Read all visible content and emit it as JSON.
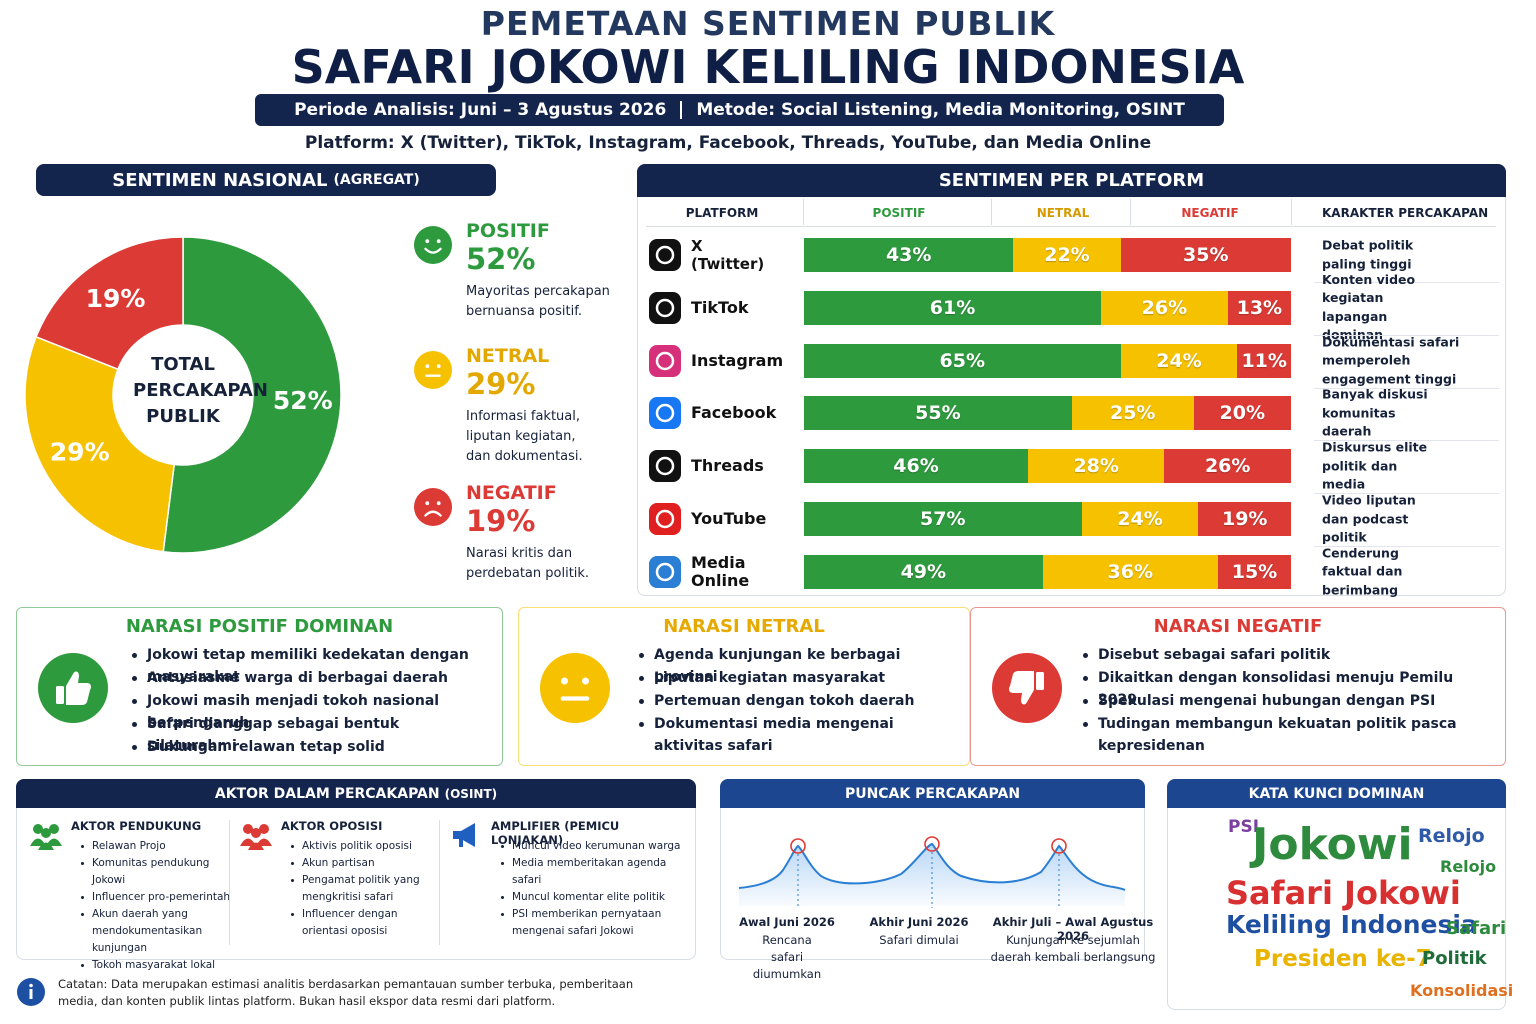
{
  "header": {
    "title_top": "PEMETAAN SENTIMEN PUBLIK",
    "title_main": "SAFARI JOKOWI KELILING INDONESIA",
    "period": "Periode Analisis: Juni – 3 Agustus 2026",
    "method": "Metode: Social Listening, Media Monitoring, OSINT",
    "platforms": "Platform: X (Twitter), TikTok, Instagram, Facebook, Threads, YouTube, dan Media Online"
  },
  "chart_data": [
    {
      "type": "pie",
      "title": "SENTIMEN NASIONAL",
      "title_suffix": "(AGREGAT)",
      "center_label": "TOTAL PERCAKAPAN PUBLIK",
      "categories": [
        "POSITIF",
        "NETRAL",
        "NEGATIF"
      ],
      "values": [
        52,
        29,
        19
      ],
      "value_labels": [
        "52%",
        "29%",
        "19%"
      ],
      "colors": [
        "#2e9a3e",
        "#f6c200",
        "#dc3a35"
      ],
      "descriptions": [
        "Mayoritas percakapan bernuansa positif.",
        "Informasi faktual, liputan kegiatan, dan dokumentasi.",
        "Narasi kritis dan perdebatan politik."
      ]
    },
    {
      "type": "bar",
      "orientation": "horizontal",
      "stacked": true,
      "title": "SENTIMEN PER PLATFORM",
      "platform_header": "PLATFORM",
      "notes_header": "KARAKTER PERCAKAPAN",
      "categories": [
        "X (Twitter)",
        "TikTok",
        "Instagram",
        "Facebook",
        "Threads",
        "YouTube",
        "Media Online"
      ],
      "xlim": [
        0,
        100
      ],
      "series": [
        {
          "name": "POSITIF",
          "color": "#2e9a3e",
          "values": [
            43,
            61,
            65,
            55,
            46,
            57,
            49
          ],
          "value_labels": [
            "43%",
            "61%",
            "65%",
            "55%",
            "46%",
            "57%",
            "49%"
          ]
        },
        {
          "name": "NETRAL",
          "color": "#f6c200",
          "values": [
            22,
            26,
            24,
            25,
            28,
            24,
            36
          ],
          "value_labels": [
            "22%",
            "26%",
            "24%",
            "25%",
            "28%",
            "24%",
            "36%"
          ]
        },
        {
          "name": "NEGATIF",
          "color": "#dc3a35",
          "values": [
            35,
            13,
            11,
            20,
            26,
            19,
            15
          ],
          "value_labels": [
            "35%",
            "13%",
            "11%",
            "20%",
            "26%",
            "19%",
            "15%"
          ]
        }
      ],
      "notes": [
        "Debat politik paling tinggi",
        "Konten video kegiatan lapangan dominan",
        "Dokumentasi safari memperoleh engagement tinggi",
        "Banyak diskusi komunitas daerah",
        "Diskursus elite politik dan media",
        "Video liputan dan podcast politik",
        "Cenderung faktual dan berimbang"
      ]
    }
  ],
  "narratives": [
    {
      "title": "NARASI POSITIF DOMINAN",
      "color": "#2e9a3e",
      "items": [
        "Jokowi tetap memiliki kedekatan dengan masyarakat",
        "Antusiasme warga di berbagai daerah",
        "Jokowi masih menjadi tokoh nasional berpengaruh",
        "Safari dianggap sebagai bentuk silaturahmi",
        "Dukungan relawan tetap solid"
      ]
    },
    {
      "title": "NARASI NETRAL",
      "color": "#f6c200",
      "items": [
        "Agenda kunjungan ke berbagai provinsi",
        "Liputan kegiatan masyarakat",
        "Pertemuan dengan tokoh daerah",
        "Dokumentasi media mengenai aktivitas safari"
      ]
    },
    {
      "title": "NARASI NEGATIF",
      "color": "#dc3a35",
      "items": [
        "Disebut sebagai safari politik",
        "Dikaitkan dengan konsolidasi menuju Pemilu 2029",
        "Spekulasi mengenai hubungan dengan PSI",
        "Tudingan membangun kekuatan politik pasca kepresidenan"
      ]
    }
  ],
  "actors": {
    "title": "AKTOR DALAM PERCAKAPAN",
    "title_suffix": "(OSINT)",
    "groups": [
      {
        "title": "AKTOR PENDUKUNG",
        "color": "#2e9a3e",
        "items": [
          "Relawan Projo",
          "Komunitas pendukung Jokowi",
          "Influencer pro-pemerintah",
          "Akun daerah yang mendokumentasikan kunjungan",
          "Tokoh masyarakat lokal"
        ]
      },
      {
        "title": "AKTOR OPOSISI",
        "color": "#dc3a35",
        "items": [
          "Aktivis politik oposisi",
          "Akun partisan",
          "Pengamat politik yang mengkritisi safari",
          "Influencer dengan orientasi oposisi"
        ]
      },
      {
        "title": "AMPLIFIER (PEMICU LONJAKAN)",
        "color": "#1f5fbf",
        "items": [
          "Muncul video kerumunan warga",
          "Media memberitakan agenda safari",
          "Muncul komentar elite politik",
          "PSI memberikan pernyataan mengenai safari Jokowi"
        ]
      }
    ]
  },
  "peaks": {
    "title": "PUNCAK PERCAKAPAN",
    "points": [
      {
        "date": "Awal Juni 2026",
        "description": "Rencana safari diumumkan"
      },
      {
        "date": "Akhir Juni 2026",
        "description": "Safari dimulai"
      },
      {
        "date": "Akhir Juli – Awal Agustus 2026",
        "description": "Kunjungan ke sejumlah daerah kembali berlangsung"
      }
    ]
  },
  "keywords": {
    "title": "KATA KUNCI DOMINAN",
    "words": [
      {
        "text": "PSI",
        "color": "#7b3fa0"
      },
      {
        "text": "Jokowi",
        "color": "#2e8b3e"
      },
      {
        "text": "Relojo",
        "color": "#2e5aa8"
      },
      {
        "text": "Relojo",
        "color": "#2e8b3e"
      },
      {
        "text": "Safari Jokowi",
        "color": "#d83030"
      },
      {
        "text": "Keliling Indonesia",
        "color": "#1f4fa0"
      },
      {
        "text": "Safari",
        "color": "#2e8b3e"
      },
      {
        "text": "Presiden ke-7",
        "color": "#e8b400"
      },
      {
        "text": "Politik",
        "color": "#1f6b3a"
      },
      {
        "text": "Konsolidasi",
        "color": "#e07020"
      }
    ]
  },
  "footnote": "Catatan: Data merupakan estimasi analitis berdasarkan pemantauan sumber terbuka, pemberitaan media, dan konten publik lintas platform. Bukan hasil ekspor data resmi dari platform."
}
